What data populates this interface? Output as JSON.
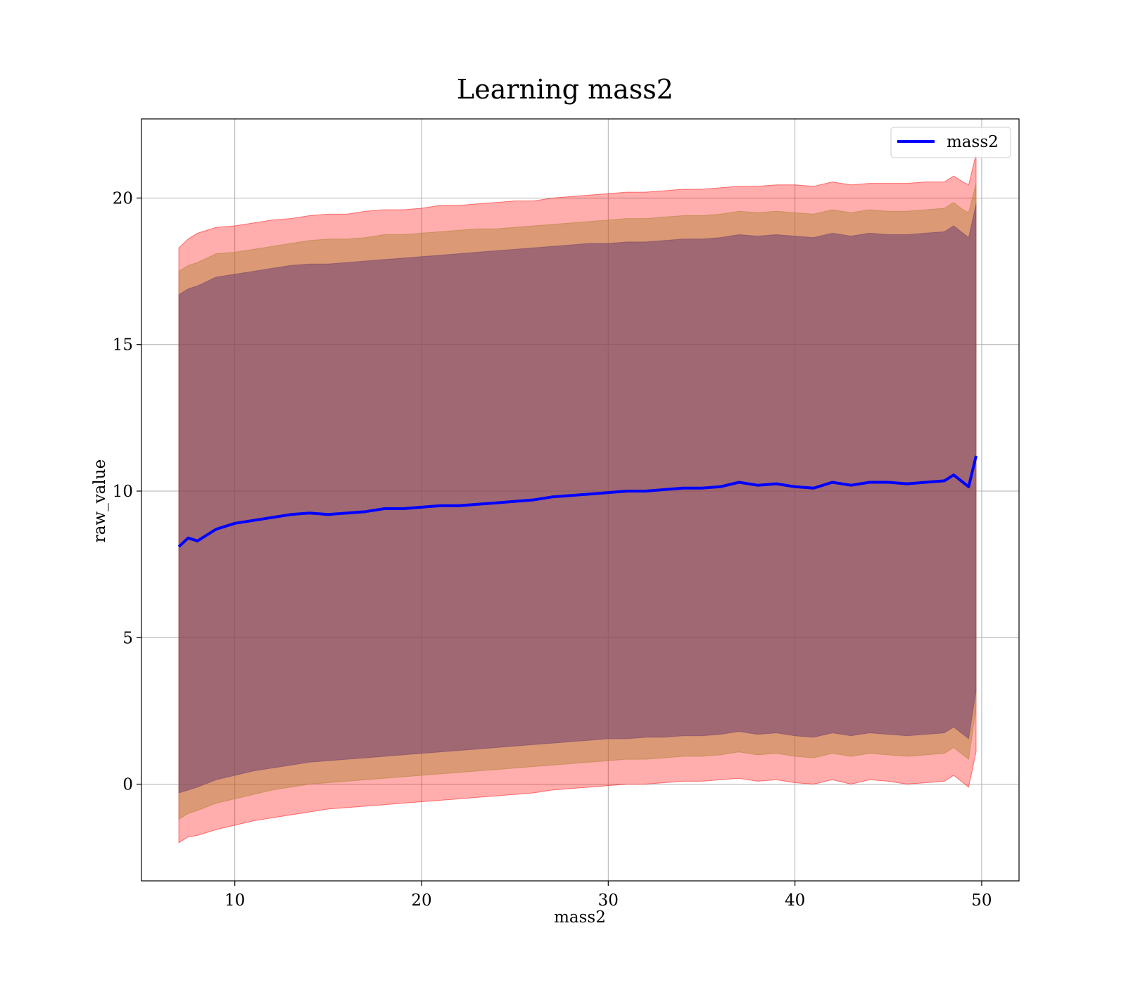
{
  "chart_data": {
    "type": "line",
    "title": "Learning mass2",
    "xlabel": "mass2",
    "ylabel": "raw_value",
    "xlim": [
      5,
      52
    ],
    "ylim": [
      -3.3,
      22.7
    ],
    "xticks": [
      10,
      20,
      30,
      40,
      50
    ],
    "yticks": [
      0,
      5,
      10,
      15,
      20
    ],
    "grid": true,
    "legend": {
      "position": "top-right",
      "entries": [
        "mass2"
      ]
    },
    "colors": {
      "line": "#0000ff",
      "band_outer": "#ff0000",
      "band_middle": "#b08030",
      "band_inner": "#704070"
    },
    "x": [
      7.0,
      7.5,
      8.0,
      9.0,
      10.0,
      11.0,
      12.0,
      13.0,
      14.0,
      15.0,
      16.0,
      17.0,
      18.0,
      19.0,
      20.0,
      21.0,
      22.0,
      23.0,
      24.0,
      25.0,
      26.0,
      27.0,
      28.0,
      29.0,
      30.0,
      31.0,
      32.0,
      33.0,
      34.0,
      35.0,
      36.0,
      37.0,
      38.0,
      39.0,
      40.0,
      41.0,
      42.0,
      43.0,
      44.0,
      45.0,
      46.0,
      47.0,
      48.0,
      48.5,
      49.0,
      49.3,
      49.7
    ],
    "series": [
      {
        "name": "mass2",
        "values": [
          8.1,
          8.4,
          8.3,
          8.7,
          8.9,
          9.0,
          9.1,
          9.2,
          9.25,
          9.2,
          9.25,
          9.3,
          9.4,
          9.4,
          9.45,
          9.5,
          9.5,
          9.55,
          9.6,
          9.65,
          9.7,
          9.8,
          9.85,
          9.9,
          9.95,
          10.0,
          10.0,
          10.05,
          10.1,
          10.1,
          10.15,
          10.3,
          10.2,
          10.25,
          10.15,
          10.1,
          10.3,
          10.2,
          10.3,
          10.3,
          10.25,
          10.3,
          10.35,
          10.55,
          10.3,
          10.15,
          11.2
        ]
      }
    ],
    "bands": [
      {
        "level": "outer",
        "upper": [
          18.3,
          18.6,
          18.8,
          19.0,
          19.05,
          19.15,
          19.25,
          19.3,
          19.4,
          19.45,
          19.45,
          19.55,
          19.6,
          19.6,
          19.65,
          19.75,
          19.75,
          19.8,
          19.85,
          19.9,
          19.9,
          20.0,
          20.05,
          20.1,
          20.15,
          20.2,
          20.2,
          20.25,
          20.3,
          20.3,
          20.35,
          20.4,
          20.4,
          20.45,
          20.45,
          20.4,
          20.55,
          20.45,
          20.5,
          20.5,
          20.5,
          20.55,
          20.55,
          20.75,
          20.55,
          20.45,
          21.5
        ],
        "lower": [
          -2.0,
          -1.8,
          -1.75,
          -1.55,
          -1.4,
          -1.25,
          -1.15,
          -1.05,
          -0.95,
          -0.85,
          -0.8,
          -0.75,
          -0.7,
          -0.65,
          -0.6,
          -0.55,
          -0.5,
          -0.45,
          -0.4,
          -0.35,
          -0.3,
          -0.2,
          -0.15,
          -0.1,
          -0.05,
          0.0,
          0.0,
          0.05,
          0.1,
          0.1,
          0.15,
          0.2,
          0.1,
          0.15,
          0.05,
          0.0,
          0.15,
          0.0,
          0.15,
          0.1,
          0.0,
          0.05,
          0.1,
          0.3,
          0.05,
          -0.1,
          1.1
        ]
      },
      {
        "level": "middle",
        "upper": [
          17.5,
          17.7,
          17.8,
          18.1,
          18.15,
          18.25,
          18.35,
          18.45,
          18.55,
          18.6,
          18.6,
          18.65,
          18.75,
          18.75,
          18.8,
          18.85,
          18.9,
          18.95,
          18.95,
          19.0,
          19.05,
          19.1,
          19.15,
          19.2,
          19.25,
          19.3,
          19.3,
          19.35,
          19.4,
          19.4,
          19.45,
          19.55,
          19.5,
          19.55,
          19.5,
          19.45,
          19.6,
          19.5,
          19.6,
          19.55,
          19.55,
          19.6,
          19.65,
          19.85,
          19.6,
          19.5,
          20.5
        ],
        "lower": [
          -1.2,
          -1.0,
          -0.9,
          -0.65,
          -0.5,
          -0.35,
          -0.2,
          -0.1,
          0.0,
          0.05,
          0.1,
          0.15,
          0.2,
          0.25,
          0.3,
          0.35,
          0.4,
          0.45,
          0.5,
          0.55,
          0.6,
          0.65,
          0.7,
          0.75,
          0.8,
          0.85,
          0.85,
          0.9,
          0.95,
          0.95,
          1.0,
          1.1,
          1.0,
          1.05,
          0.95,
          0.9,
          1.05,
          0.95,
          1.05,
          1.0,
          0.95,
          1.0,
          1.05,
          1.25,
          1.0,
          0.85,
          2.6
        ]
      },
      {
        "level": "inner",
        "upper": [
          16.7,
          16.9,
          17.0,
          17.3,
          17.4,
          17.5,
          17.6,
          17.7,
          17.75,
          17.75,
          17.8,
          17.85,
          17.9,
          17.95,
          18.0,
          18.05,
          18.1,
          18.15,
          18.2,
          18.25,
          18.3,
          18.35,
          18.4,
          18.45,
          18.45,
          18.5,
          18.5,
          18.55,
          18.6,
          18.6,
          18.65,
          18.75,
          18.7,
          18.75,
          18.7,
          18.65,
          18.8,
          18.7,
          18.8,
          18.75,
          18.75,
          18.8,
          18.85,
          19.05,
          18.8,
          18.65,
          19.8
        ],
        "lower": [
          -0.3,
          -0.2,
          -0.1,
          0.15,
          0.3,
          0.45,
          0.55,
          0.65,
          0.75,
          0.8,
          0.85,
          0.9,
          0.95,
          1.0,
          1.05,
          1.1,
          1.15,
          1.2,
          1.25,
          1.3,
          1.35,
          1.4,
          1.45,
          1.5,
          1.55,
          1.55,
          1.6,
          1.6,
          1.65,
          1.65,
          1.7,
          1.8,
          1.7,
          1.75,
          1.65,
          1.6,
          1.75,
          1.65,
          1.75,
          1.7,
          1.65,
          1.7,
          1.75,
          1.95,
          1.7,
          1.55,
          3.2
        ]
      }
    ]
  }
}
